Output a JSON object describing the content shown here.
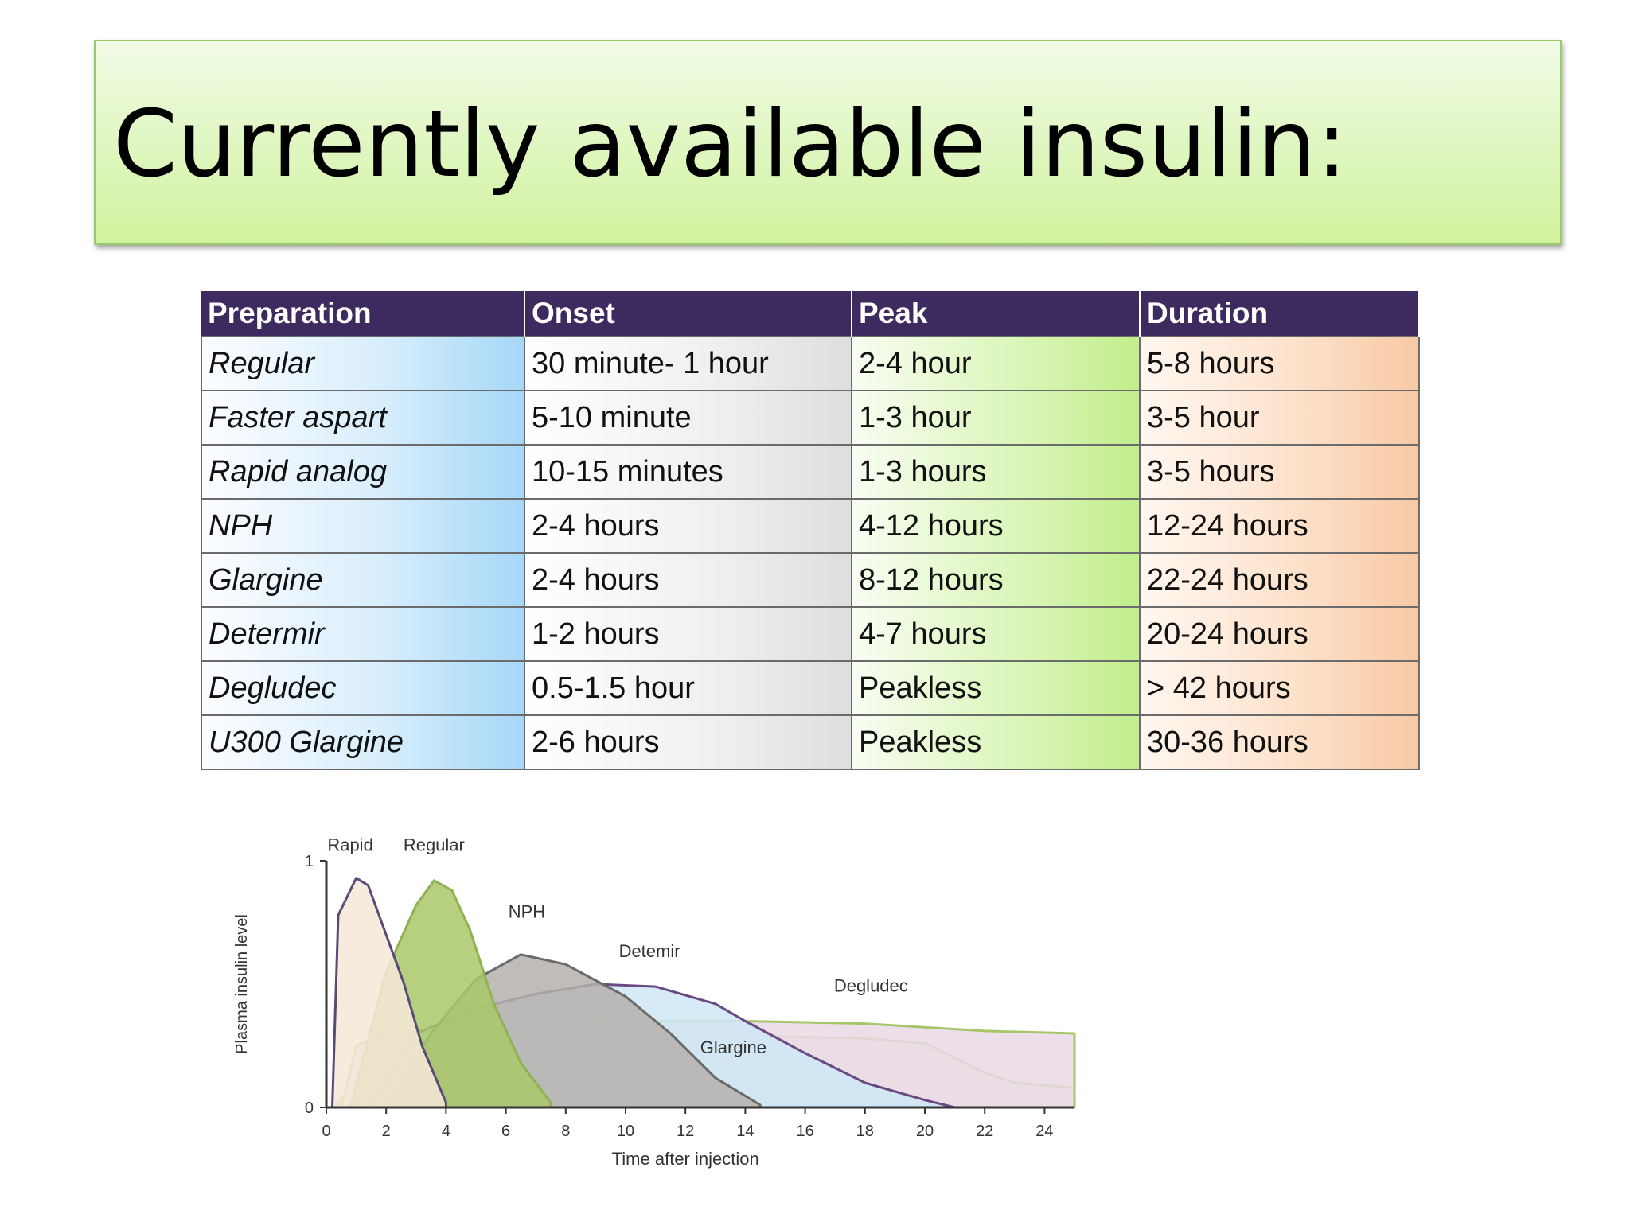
{
  "slide": {
    "title": "Currently available insulin:"
  },
  "table": {
    "headers": [
      "Preparation",
      "Onset",
      "Peak",
      "Duration"
    ],
    "rows": [
      [
        "Regular",
        "30 minute- 1 hour",
        "2-4 hour",
        "5-8 hours"
      ],
      [
        "Faster aspart",
        "5-10 minute",
        "1-3 hour",
        "3-5 hour"
      ],
      [
        "Rapid analog",
        "10-15 minutes",
        "1-3 hours",
        "3-5 hours"
      ],
      [
        "NPH",
        "2-4 hours",
        "4-12 hours",
        "12-24 hours"
      ],
      [
        "Glargine",
        "2-4 hours",
        "8-12 hours",
        "22-24 hours"
      ],
      [
        "Determir",
        "1-2 hours",
        "4-7 hours",
        "20-24 hours"
      ],
      [
        "Degludec",
        "0.5-1.5 hour",
        "Peakless",
        "> 42 hours"
      ],
      [
        "U300 Glargine",
        "2-6 hours",
        "Peakless",
        "30-36 hours"
      ]
    ]
  },
  "chart_data": {
    "type": "area",
    "title": "",
    "xlabel": "Time after injection",
    "ylabel": "Plasma insulin level",
    "x_ticks": [
      0,
      2,
      4,
      6,
      8,
      10,
      12,
      14,
      16,
      18,
      20,
      22,
      24
    ],
    "y_ticks": [
      0,
      1
    ],
    "xlim": [
      0,
      25
    ],
    "ylim": [
      0,
      1
    ],
    "grid": false,
    "series": [
      {
        "name": "Rapid",
        "color": "#f6e8d8",
        "stroke": "#5a4a78",
        "points": [
          [
            0.2,
            0
          ],
          [
            0.4,
            0.78
          ],
          [
            1,
            0.93
          ],
          [
            1.4,
            0.9
          ],
          [
            2,
            0.7
          ],
          [
            2.6,
            0.5
          ],
          [
            3.2,
            0.25
          ],
          [
            4,
            0.02
          ]
        ]
      },
      {
        "name": "Regular",
        "color": "#a9c86a",
        "stroke": "#8fb255",
        "points": [
          [
            0.8,
            0
          ],
          [
            2,
            0.55
          ],
          [
            3,
            0.82
          ],
          [
            3.6,
            0.92
          ],
          [
            4.2,
            0.88
          ],
          [
            4.8,
            0.72
          ],
          [
            5.6,
            0.42
          ],
          [
            6.5,
            0.18
          ],
          [
            7.5,
            0.02
          ]
        ]
      },
      {
        "name": "NPH",
        "color": "#b5b0ab",
        "stroke": "#6a6a6a",
        "points": [
          [
            2,
            0
          ],
          [
            3.5,
            0.3
          ],
          [
            5,
            0.52
          ],
          [
            6.5,
            0.62
          ],
          [
            8,
            0.58
          ],
          [
            10,
            0.45
          ],
          [
            11.5,
            0.3
          ],
          [
            13,
            0.12
          ],
          [
            14.5,
            0.01
          ]
        ]
      },
      {
        "name": "Detemir",
        "color": "#cfe7f6",
        "stroke": "#6a4a80",
        "points": [
          [
            1.5,
            0
          ],
          [
            3,
            0.3
          ],
          [
            5,
            0.4
          ],
          [
            7,
            0.46
          ],
          [
            9,
            0.5
          ],
          [
            11,
            0.49
          ],
          [
            13,
            0.42
          ],
          [
            14,
            0.35
          ],
          [
            16,
            0.22
          ],
          [
            18,
            0.1
          ],
          [
            20,
            0.03
          ],
          [
            21,
            0
          ]
        ]
      },
      {
        "name": "Degludec",
        "color": "#ead9e6",
        "stroke": "#a7c66a",
        "points": [
          [
            0.5,
            0
          ],
          [
            1,
            0.25
          ],
          [
            2,
            0.3
          ],
          [
            4,
            0.32
          ],
          [
            6,
            0.34
          ],
          [
            10,
            0.35
          ],
          [
            14,
            0.35
          ],
          [
            18,
            0.34
          ],
          [
            22,
            0.31
          ],
          [
            25,
            0.3
          ]
        ]
      },
      {
        "name": "Glargine",
        "color": "#eeeada",
        "stroke": "#a7c66a",
        "points": [
          [
            0.3,
            0
          ],
          [
            1,
            0.12
          ],
          [
            2,
            0.2
          ],
          [
            4,
            0.26
          ],
          [
            6,
            0.28
          ],
          [
            10,
            0.29
          ],
          [
            14,
            0.29
          ],
          [
            18,
            0.28
          ],
          [
            20,
            0.26
          ],
          [
            21,
            0.2
          ],
          [
            22,
            0.14
          ],
          [
            23,
            0.1
          ],
          [
            25,
            0.08
          ]
        ]
      }
    ]
  }
}
